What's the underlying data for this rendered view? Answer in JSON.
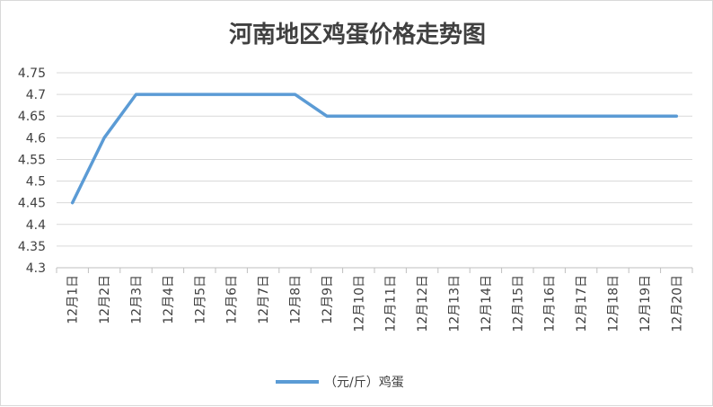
{
  "chart_data": {
    "type": "line",
    "title": "河南地区鸡蛋价格走势图",
    "xlabel": "",
    "ylabel": "",
    "categories": [
      "12月1日",
      "12月2日",
      "12月3日",
      "12月4日",
      "12月5日",
      "12月6日",
      "12月7日",
      "12月8日",
      "12月9日",
      "12月10日",
      "12月11日",
      "12月12日",
      "12月13日",
      "12月14日",
      "12月15日",
      "12月16日",
      "12月17日",
      "12月18日",
      "12月19日",
      "12月20日"
    ],
    "series": [
      {
        "name": "（元/斤）鸡蛋",
        "values": [
          4.45,
          4.6,
          4.7,
          4.7,
          4.7,
          4.7,
          4.7,
          4.7,
          4.65,
          4.65,
          4.65,
          4.65,
          4.65,
          4.65,
          4.65,
          4.65,
          4.65,
          4.65,
          4.65,
          4.65
        ],
        "color": "#5b9bd5"
      }
    ],
    "y_ticks": [
      "4.3",
      "4.35",
      "4.4",
      "4.45",
      "4.5",
      "4.55",
      "4.6",
      "4.65",
      "4.7",
      "4.75"
    ],
    "ylim": [
      4.3,
      4.75
    ],
    "grid": true,
    "legend_position": "bottom"
  }
}
